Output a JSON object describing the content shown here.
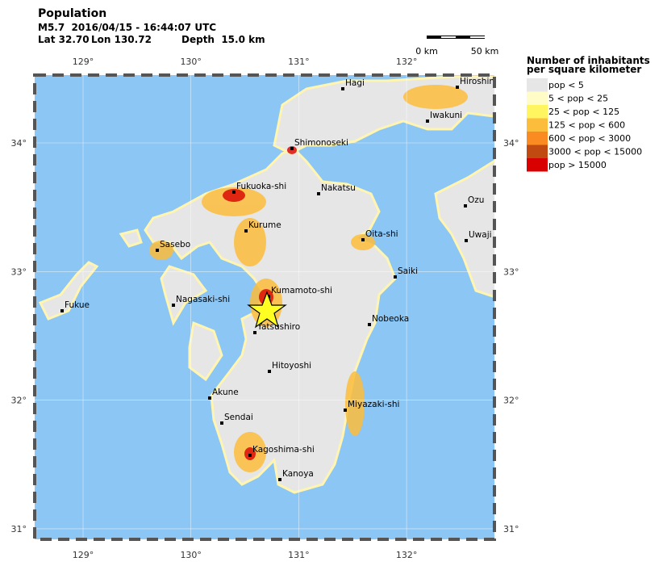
{
  "header": {
    "title": "Population",
    "event": "M5.7  2016/04/15 - 16:44:07 UTC",
    "lat": "Lat 32.70",
    "lon": "Lon 130.72",
    "depth": "Depth  15.0 km"
  },
  "scale_bar": {
    "start": "0 km",
    "end": "50 km"
  },
  "map": {
    "lon_ticks": [
      {
        "value": 129,
        "label": "129°"
      },
      {
        "value": 130,
        "label": "130°"
      },
      {
        "value": 131,
        "label": "131°"
      },
      {
        "value": 132,
        "label": "132°"
      }
    ],
    "lat_ticks": [
      {
        "value": 34,
        "label": "34°"
      },
      {
        "value": 33,
        "label": "33°"
      },
      {
        "value": 32,
        "label": "32°"
      },
      {
        "value": 31,
        "label": "31°"
      }
    ],
    "cities": [
      "Hagi",
      "Hiroshim",
      "Iwakuni",
      "Shimonoseki",
      "Nakatsu",
      "Fukuoka-shi",
      "Kurume",
      "Oita-shi",
      "Ozu",
      "Uwaji",
      "Saiki",
      "Sasebo",
      "Nagasaki-shi",
      "Kumamoto-shi",
      "Fukue",
      "Yatsushiro",
      "Nobeoka",
      "Hitoyoshi",
      "Akune",
      "Miyazaki-shi",
      "Sendai",
      "Kagoshima-shi",
      "Kanoya"
    ]
  },
  "legend": {
    "title_lines": [
      "Number of inhabitants",
      "per square kilometer"
    ],
    "items": [
      {
        "label": "pop < 5",
        "color": "#e6e6e6"
      },
      {
        "label": "5 < pop < 25",
        "color": "#fffcc8"
      },
      {
        "label": "25 < pop < 125",
        "color": "#fff560"
      },
      {
        "label": "125 < pop < 600",
        "color": "#fcbc3c"
      },
      {
        "label": "600 < pop < 3000",
        "color": "#fa8a22"
      },
      {
        "label": "3000 < pop < 15000",
        "color": "#c04a10"
      },
      {
        "label": "pop > 15000",
        "color": "#d80000"
      }
    ]
  }
}
